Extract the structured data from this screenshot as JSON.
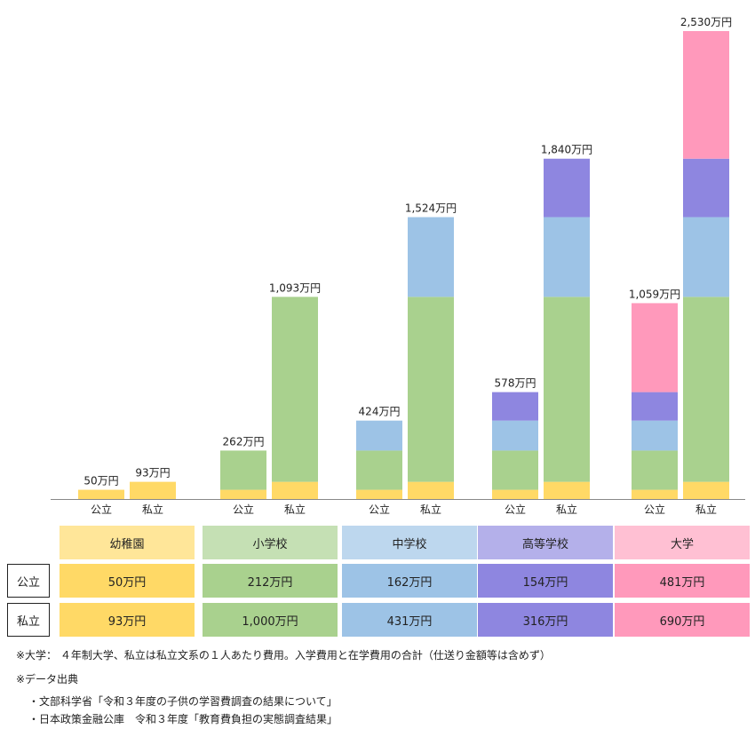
{
  "chart_data": {
    "type": "bar",
    "stacked": true,
    "unit": "万円",
    "stages": [
      {
        "name": "幼稚園",
        "color": "#FFD966",
        "header_color": "#FFE699"
      },
      {
        "name": "小学校",
        "color": "#A9D18E",
        "header_color": "#C5E0B4"
      },
      {
        "name": "中学校",
        "color": "#9DC3E6",
        "header_color": "#BDD7EE"
      },
      {
        "name": "高等学校",
        "color": "#8E86E0",
        "header_color": "#B4B0EA"
      },
      {
        "name": "大学",
        "color": "#FF99BB",
        "header_color": "#FFC0D3"
      }
    ],
    "groups": [
      {
        "bars": [
          {
            "category": "公立",
            "segments": [
              50
            ],
            "total_label": "50万円"
          },
          {
            "category": "私立",
            "segments": [
              93
            ],
            "total_label": "93万円"
          }
        ]
      },
      {
        "bars": [
          {
            "category": "公立",
            "segments": [
              50,
              212
            ],
            "total_label": "262万円"
          },
          {
            "category": "私立",
            "segments": [
              93,
              1000
            ],
            "total_label": "1,093万円"
          }
        ]
      },
      {
        "bars": [
          {
            "category": "公立",
            "segments": [
              50,
              212,
              162
            ],
            "total_label": "424万円"
          },
          {
            "category": "私立",
            "segments": [
              93,
              1000,
              431
            ],
            "total_label": "1,524万円"
          }
        ]
      },
      {
        "bars": [
          {
            "category": "公立",
            "segments": [
              50,
              212,
              162,
              154
            ],
            "total_label": "578万円"
          },
          {
            "category": "私立",
            "segments": [
              93,
              1000,
              431,
              316
            ],
            "total_label": "1,840万円"
          }
        ]
      },
      {
        "bars": [
          {
            "category": "公立",
            "segments": [
              50,
              212,
              162,
              154,
              481
            ],
            "total_label": "1,059万円"
          },
          {
            "category": "私立",
            "segments": [
              93,
              1000,
              431,
              316,
              690
            ],
            "total_label": "2,530万円"
          }
        ]
      }
    ],
    "ylim": [
      0,
      2530
    ],
    "grid": false,
    "legend": "table below chart"
  },
  "table": {
    "headers": [
      "幼稚園",
      "小学校",
      "中学校",
      "高等学校",
      "大学"
    ],
    "rows": [
      {
        "label": "公立",
        "values": [
          "50万円",
          "212万円",
          "162万円",
          "154万円",
          "481万円"
        ]
      },
      {
        "label": "私立",
        "values": [
          "93万円",
          "1,000万円",
          "431万円",
          "316万円",
          "690万円"
        ]
      }
    ]
  },
  "notes": {
    "note1": "※大学： ４年制大学、私立は私立文系の１人あたり費用。入学費用と在学費用の合計（仕送り金額等は含めず）",
    "note2": "※データ出典",
    "source1": "・文部科学省「令和３年度の子供の学習費調査の結果について」",
    "source2": "・日本政策金融公庫　令和３年度「教育費負担の実態調査結果」"
  }
}
